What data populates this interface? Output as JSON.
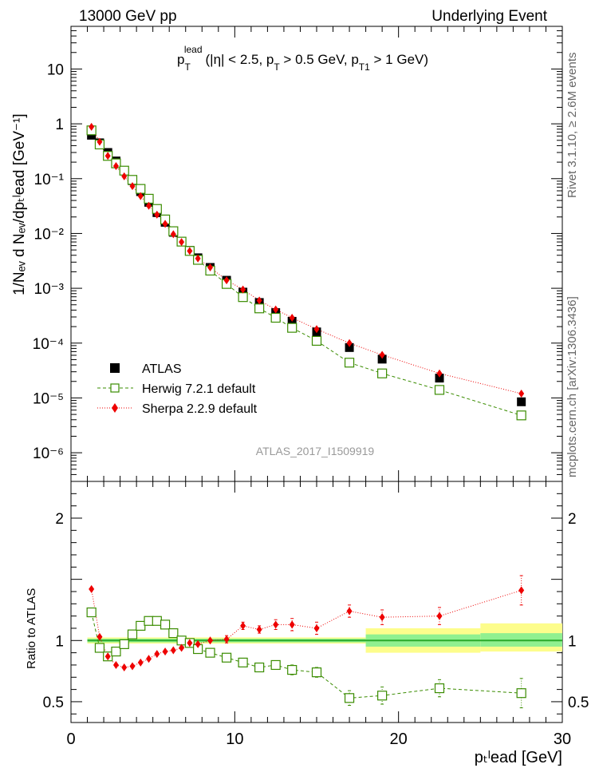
{
  "header": {
    "left": "13000 GeV pp",
    "right": "Underlying Event"
  },
  "side": {
    "rivet": "Rivet 3.1.10, ≥ 2.6M events",
    "mcplots": "mcplots.cern.ch [arXiv:1306.3436]"
  },
  "colors": {
    "atlas": "#000000",
    "herwig": "#3a8c00",
    "sherpa": "#ee0000",
    "band_inner": "#90f090",
    "band_outer": "#fdfd8c",
    "ref_line": "#2aaa2a"
  },
  "chart_data": [
    {
      "type": "scatter",
      "title": "p_T^lead (|η| < 2.5, p_T > 0.5 GeV, p_T1 > 1 GeV)",
      "title_parts": {
        "main": "p",
        "sub_main": "T",
        "sup_main": "lead",
        "cond1": "(|η| < 2.5, p",
        "sub1": "T",
        "cond2": " > 0.5 GeV, p",
        "sub2": "T1",
        "cond3": " > 1 GeV)"
      },
      "ylabel": "1/N_ev d N_ev/dp_T^lead [GeV^-1]",
      "ylabel_display": "1/Nₑᵥ d Nₑᵥ/dpₜˡead [GeV⁻¹]",
      "yscale": "log",
      "ylim": [
        3e-07,
        60
      ],
      "xlim": [
        0,
        30
      ],
      "ytick_labels": [
        "10",
        "1",
        "10⁻¹",
        "10⁻²",
        "10⁻³",
        "10⁻⁴",
        "10⁻⁵",
        "10⁻⁶"
      ],
      "ytick_values": [
        10,
        1,
        0.1,
        0.01,
        0.001,
        0.0001,
        1e-05,
        1e-06
      ],
      "watermark": "ATLAS_2017_I1509919",
      "legend_position": "bottom-left",
      "x": [
        1.25,
        1.75,
        2.25,
        2.75,
        3.25,
        3.75,
        4.25,
        4.75,
        5.25,
        5.75,
        6.25,
        6.75,
        7.25,
        7.75,
        8.5,
        9.5,
        10.5,
        11.5,
        12.5,
        13.5,
        15,
        17,
        19,
        22.5,
        27.5
      ],
      "series": [
        {
          "name": "ATLAS",
          "marker": "filled-square",
          "values": [
            0.62,
            0.45,
            0.3,
            0.21,
            0.14,
            0.092,
            0.058,
            0.037,
            0.024,
            0.016,
            0.0105,
            0.0071,
            0.0049,
            0.0036,
            0.0024,
            0.0014,
            0.00085,
            0.00055,
            0.00036,
            0.00025,
            0.00016,
            8.3e-05,
            5.1e-05,
            2.3e-05,
            8.5e-06
          ]
        },
        {
          "name": "Herwig 7.2.1 default",
          "marker": "open-square",
          "values": [
            0.76,
            0.42,
            0.26,
            0.19,
            0.14,
            0.095,
            0.065,
            0.043,
            0.028,
            0.018,
            0.011,
            0.0071,
            0.0048,
            0.0033,
            0.0021,
            0.0012,
            0.00069,
            0.00043,
            0.00029,
            0.00019,
            0.00011,
            4.4e-05,
            2.8e-05,
            1.4e-05,
            4.8e-06
          ]
        },
        {
          "name": "Sherpa 2.2.9 default",
          "marker": "filled-diamond",
          "values": [
            0.88,
            0.47,
            0.26,
            0.17,
            0.11,
            0.073,
            0.048,
            0.032,
            0.022,
            0.015,
            0.0097,
            0.007,
            0.0048,
            0.0035,
            0.0024,
            0.0014,
            0.00095,
            0.0006,
            0.00041,
            0.00029,
            0.00018,
            0.0001,
            6.1e-05,
            2.8e-05,
            1.2e-05
          ]
        }
      ]
    },
    {
      "type": "scatter",
      "ylabel": "Ratio to ATLAS",
      "xlabel": "p_T^lead [GeV]",
      "xlabel_display": "pₜˡead [GeV]",
      "xlim": [
        0,
        30
      ],
      "ylim": [
        0.33,
        2.3
      ],
      "xtick_labels": [
        "0",
        "10",
        "20",
        "30"
      ],
      "xtick_values": [
        0,
        10,
        20,
        30
      ],
      "ytick_labels": [
        "0.5",
        "1",
        "2"
      ],
      "ytick_values": [
        0.5,
        1,
        2
      ],
      "x": [
        1.25,
        1.75,
        2.25,
        2.75,
        3.25,
        3.75,
        4.25,
        4.75,
        5.25,
        5.75,
        6.25,
        6.75,
        7.25,
        7.75,
        8.5,
        9.5,
        10.5,
        11.5,
        12.5,
        13.5,
        15,
        17,
        19,
        22.5,
        27.5
      ],
      "bands": [
        {
          "x0": 1,
          "x1": 18,
          "inner": [
            0.985,
            1.015
          ],
          "outer": [
            0.975,
            1.025
          ]
        },
        {
          "x0": 18,
          "x1": 25,
          "inner": [
            0.95,
            1.05
          ],
          "outer": [
            0.9,
            1.1
          ]
        },
        {
          "x0": 25,
          "x1": 30,
          "inner": [
            0.95,
            1.06
          ],
          "outer": [
            0.91,
            1.14
          ]
        }
      ],
      "series": [
        {
          "name": "Herwig 7.2.1 default",
          "values": [
            1.23,
            0.94,
            0.87,
            0.91,
            0.97,
            1.05,
            1.12,
            1.16,
            1.16,
            1.13,
            1.06,
            1.0,
            0.98,
            0.93,
            0.9,
            0.86,
            0.82,
            0.78,
            0.8,
            0.76,
            0.74,
            0.53,
            0.55,
            0.61,
            0.57
          ],
          "errors": [
            0.02,
            0.02,
            0.02,
            0.02,
            0.02,
            0.02,
            0.02,
            0.02,
            0.02,
            0.02,
            0.02,
            0.02,
            0.02,
            0.02,
            0.02,
            0.02,
            0.02,
            0.02,
            0.03,
            0.04,
            0.04,
            0.06,
            0.07,
            0.07,
            0.12
          ]
        },
        {
          "name": "Sherpa 2.2.9 default",
          "values": [
            1.42,
            1.03,
            0.87,
            0.8,
            0.78,
            0.79,
            0.82,
            0.85,
            0.89,
            0.91,
            0.92,
            0.94,
            0.98,
            0.97,
            1.0,
            1.01,
            1.12,
            1.09,
            1.13,
            1.13,
            1.1,
            1.24,
            1.19,
            1.2,
            1.41
          ],
          "errors": [
            0.02,
            0.02,
            0.02,
            0.02,
            0.02,
            0.02,
            0.02,
            0.02,
            0.02,
            0.02,
            0.02,
            0.02,
            0.02,
            0.02,
            0.02,
            0.03,
            0.03,
            0.03,
            0.04,
            0.05,
            0.05,
            0.05,
            0.06,
            0.07,
            0.12
          ]
        }
      ]
    }
  ]
}
